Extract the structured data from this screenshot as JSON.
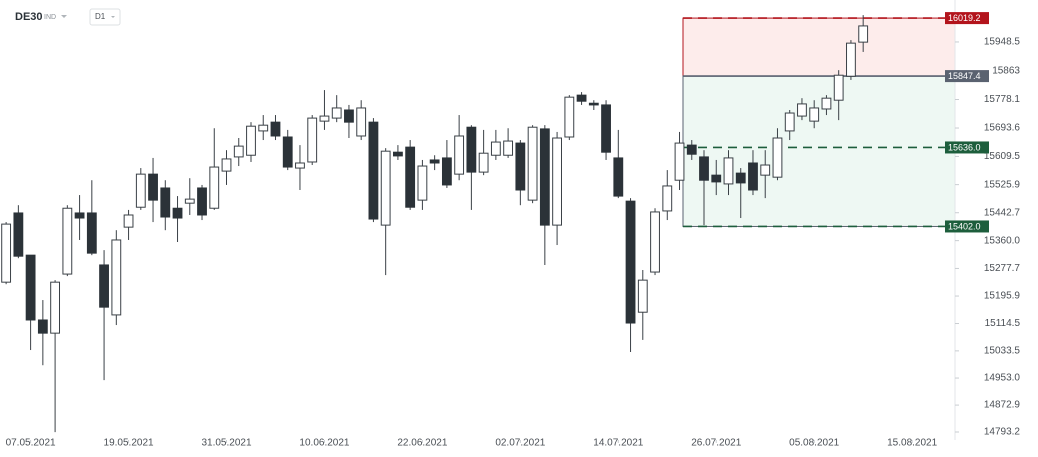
{
  "chart_data": {
    "type": "candlestick",
    "symbol": "DE30",
    "instrument_type": "IND",
    "timeframe": "D1",
    "open": [
      15237,
      15442,
      15317,
      15125,
      15086,
      15261,
      15442,
      15442,
      15288,
      15140,
      15400,
      15459,
      15557,
      15516,
      15456,
      15471,
      15516,
      15456,
      15566,
      15608,
      15613,
      15685,
      15711,
      15667,
      15575,
      15593,
      15714,
      15723,
      15747,
      15670,
      15711,
      15406,
      15622,
      15637,
      15480,
      15599,
      15605,
      15557,
      15696,
      15563,
      15613,
      15613,
      15649,
      15480,
      15691,
      15406,
      15667,
      15791,
      15767,
      15762,
      15605,
      15477,
      15148,
      15267,
      15448,
      15539,
      15643,
      15608,
      15554,
      15528,
      15560,
      15590,
      15554,
      15548,
      15685,
      15729,
      15714,
      15750,
      15776,
      15847,
      15948
    ],
    "high": [
      15415,
      15465,
      15317,
      15184,
      15243,
      15465,
      15495,
      15539,
      15332,
      15391,
      15451,
      15575,
      15605,
      15539,
      15492,
      15545,
      15525,
      15693,
      15628,
      15664,
      15711,
      15732,
      15732,
      15688,
      15643,
      15732,
      15806,
      15791,
      15762,
      15776,
      15723,
      15634,
      15643,
      15658,
      15599,
      15613,
      15658,
      15732,
      15702,
      15688,
      15688,
      15693,
      15658,
      15702,
      15702,
      15682,
      15791,
      15800,
      15776,
      15776,
      15688,
      15486,
      15273,
      15456,
      15569,
      15682,
      15658,
      15628,
      15599,
      15628,
      15575,
      15628,
      15628,
      15693,
      15747,
      15782,
      15776,
      15791,
      15865,
      15954,
      16028
    ],
    "low": [
      15231,
      15308,
      15036,
      14991,
      14793,
      15255,
      15362,
      15317,
      14947,
      15110,
      15362,
      15451,
      15415,
      15391,
      15356,
      15436,
      15421,
      15451,
      15525,
      15581,
      15593,
      15658,
      15658,
      15569,
      15510,
      15584,
      15688,
      15711,
      15664,
      15658,
      15415,
      15258,
      15599,
      15451,
      15451,
      15569,
      15516,
      15539,
      15451,
      15554,
      15599,
      15605,
      15465,
      15471,
      15288,
      15347,
      15658,
      15762,
      15747,
      15599,
      15486,
      15030,
      15066,
      15258,
      15421,
      15510,
      15599,
      15406,
      15495,
      15495,
      15427,
      15495,
      15486,
      15539,
      15658,
      15717,
      15693,
      15732,
      15717,
      15836,
      15919
    ],
    "close": [
      15409,
      15314,
      15125,
      15086,
      15237,
      15456,
      15427,
      15323,
      15163,
      15362,
      15436,
      15557,
      15480,
      15430,
      15427,
      15483,
      15436,
      15578,
      15602,
      15640,
      15699,
      15702,
      15670,
      15578,
      15590,
      15723,
      15729,
      15753,
      15711,
      15753,
      15424,
      15625,
      15611,
      15459,
      15581,
      15590,
      15525,
      15670,
      15563,
      15619,
      15652,
      15655,
      15510,
      15696,
      15406,
      15664,
      15785,
      15773,
      15762,
      15622,
      15492,
      15116,
      15243,
      15445,
      15522,
      15649,
      15616,
      15539,
      15534,
      15605,
      15531,
      15510,
      15584,
      15664,
      15738,
      15765,
      15753,
      15782,
      15850,
      15945,
      15996
    ],
    "up_color": "#ffffff",
    "down_color": "#2b3238",
    "wick_color": "#3a4046",
    "xlim": [
      -0.5,
      77.5
    ],
    "xticks": [
      {
        "value": 2,
        "label": "07.05.2021"
      },
      {
        "value": 10,
        "label": "19.05.2021"
      },
      {
        "value": 18,
        "label": "31.05.2021"
      },
      {
        "value": 26,
        "label": "10.06.2021"
      },
      {
        "value": 34,
        "label": "22.06.2021"
      },
      {
        "value": 42,
        "label": "02.07.2021"
      },
      {
        "value": 50,
        "label": "14.07.2021"
      },
      {
        "value": 58,
        "label": "26.07.2021"
      },
      {
        "value": 66,
        "label": "05.08.2021"
      },
      {
        "value": 74,
        "label": "15.08.2021"
      }
    ],
    "ylim": [
      14769.5,
      16072.8
    ],
    "yticks": [
      15948.5,
      15863.0,
      15778.1,
      15693.6,
      15609.5,
      15525.9,
      15442.7,
      {
        "value": 15360,
        "label": "15360.0"
      },
      15277.7,
      15195.9,
      15114.5,
      15033.5,
      {
        "value": 14953,
        "label": "14953.0"
      },
      14872.9,
      14793.2
    ],
    "levels": [
      {
        "value": 16019.2,
        "color": "#b3141c",
        "dash": true,
        "fill": "#fdeceb"
      },
      {
        "value": 15847.4,
        "color": "#5a6270",
        "dash": false,
        "fill": "#eef8f3"
      },
      {
        "value": {
          "value": 15636,
          "label": "15636.0"
        },
        "color": "#1d5e3c",
        "dash": true
      },
      {
        "value": {
          "value": 15402,
          "label": "15402.0"
        },
        "color": "#1d5e3c",
        "dash": true
      }
    ]
  }
}
